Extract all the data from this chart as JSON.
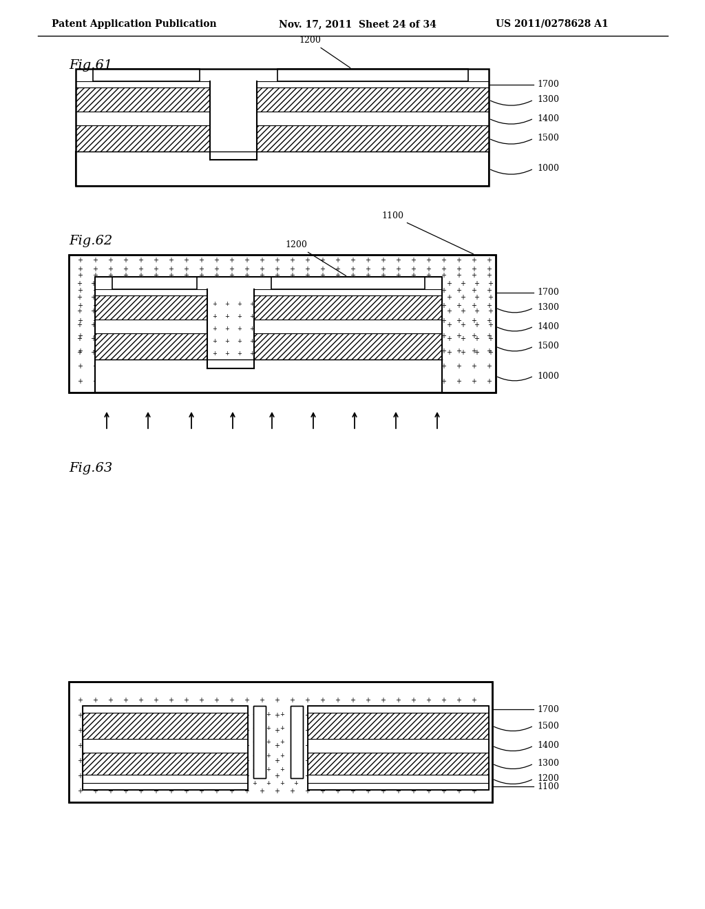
{
  "header_left": "Patent Application Publication",
  "header_mid": "Nov. 17, 2011  Sheet 24 of 34",
  "header_right": "US 2011/0278628 A1",
  "fig61_label": "Fig.61",
  "fig62_label": "Fig.62",
  "fig63_label": "Fig.63",
  "bg_color": "#ffffff",
  "line_color": "#000000",
  "label_1000": "1000",
  "label_1100": "1100",
  "label_1200": "1200",
  "label_1300": "1300",
  "label_1400": "1400",
  "label_1500": "1500",
  "label_1700": "1700"
}
